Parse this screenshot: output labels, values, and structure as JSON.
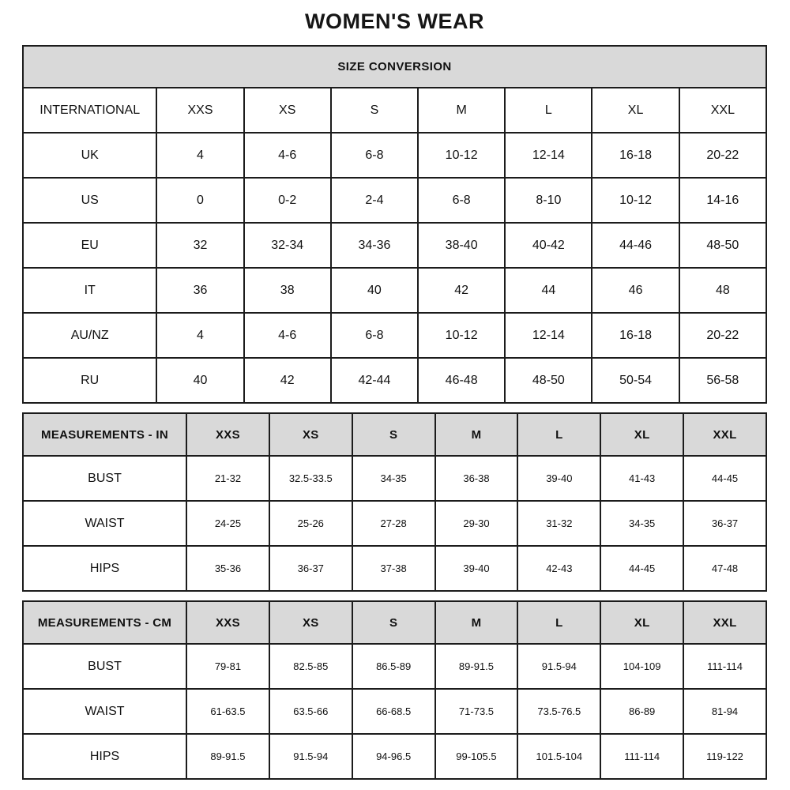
{
  "page": {
    "title": "WOMEN'S WEAR"
  },
  "colors": {
    "header_bg": "#d9d9d9",
    "border": "#1c1c1c",
    "text": "#111111",
    "background": "#ffffff"
  },
  "tables": [
    {
      "name": "size-conversion",
      "banner": "SIZE CONVERSION",
      "columns": [
        "INTERNATIONAL",
        "XXS",
        "XS",
        "S",
        "M",
        "L",
        "XL",
        "XXL"
      ],
      "rows": [
        {
          "label": "UK",
          "values": [
            "4",
            "4-6",
            "6-8",
            "10-12",
            "12-14",
            "16-18",
            "20-22"
          ]
        },
        {
          "label": "US",
          "values": [
            "0",
            "0-2",
            "2-4",
            "6-8",
            "8-10",
            "10-12",
            "14-16"
          ]
        },
        {
          "label": "EU",
          "values": [
            "32",
            "32-34",
            "34-36",
            "38-40",
            "40-42",
            "44-46",
            "48-50"
          ]
        },
        {
          "label": "IT",
          "values": [
            "36",
            "38",
            "40",
            "42",
            "44",
            "46",
            "48"
          ]
        },
        {
          "label": "AU/NZ",
          "values": [
            "4",
            "4-6",
            "6-8",
            "10-12",
            "12-14",
            "16-18",
            "20-22"
          ]
        },
        {
          "label": "RU",
          "values": [
            "40",
            "42",
            "42-44",
            "46-48",
            "48-50",
            "50-54",
            "56-58"
          ]
        }
      ]
    },
    {
      "name": "measurements-in",
      "columns": [
        "MEASUREMENTS - IN",
        "XXS",
        "XS",
        "S",
        "M",
        "L",
        "XL",
        "XXL"
      ],
      "rows": [
        {
          "label": "BUST",
          "values": [
            "21-32",
            "32.5-33.5",
            "34-35",
            "36-38",
            "39-40",
            "41-43",
            "44-45"
          ]
        },
        {
          "label": "WAIST",
          "values": [
            "24-25",
            "25-26",
            "27-28",
            "29-30",
            "31-32",
            "34-35",
            "36-37"
          ]
        },
        {
          "label": "HIPS",
          "values": [
            "35-36",
            "36-37",
            "37-38",
            "39-40",
            "42-43",
            "44-45",
            "47-48"
          ]
        }
      ]
    },
    {
      "name": "measurements-cm",
      "columns": [
        "MEASUREMENTS - CM",
        "XXS",
        "XS",
        "S",
        "M",
        "L",
        "XL",
        "XXL"
      ],
      "rows": [
        {
          "label": "BUST",
          "values": [
            "79-81",
            "82.5-85",
            "86.5-89",
            "89-91.5",
            "91.5-94",
            "104-109",
            "111-114"
          ]
        },
        {
          "label": "WAIST",
          "values": [
            "61-63.5",
            "63.5-66",
            "66-68.5",
            "71-73.5",
            "73.5-76.5",
            "86-89",
            "81-94"
          ]
        },
        {
          "label": "HIPS",
          "values": [
            "89-91.5",
            "91.5-94",
            "94-96.5",
            "99-105.5",
            "101.5-104",
            "111-114",
            "119-122"
          ]
        }
      ]
    }
  ]
}
